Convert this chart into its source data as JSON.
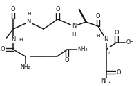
{
  "bg": "#ffffff",
  "fg": "#1a1a1a",
  "figsize": [
    1.97,
    1.25
  ],
  "dpi": 100,
  "xlim": [
    0,
    197
  ],
  "ylim": [
    0,
    125
  ]
}
